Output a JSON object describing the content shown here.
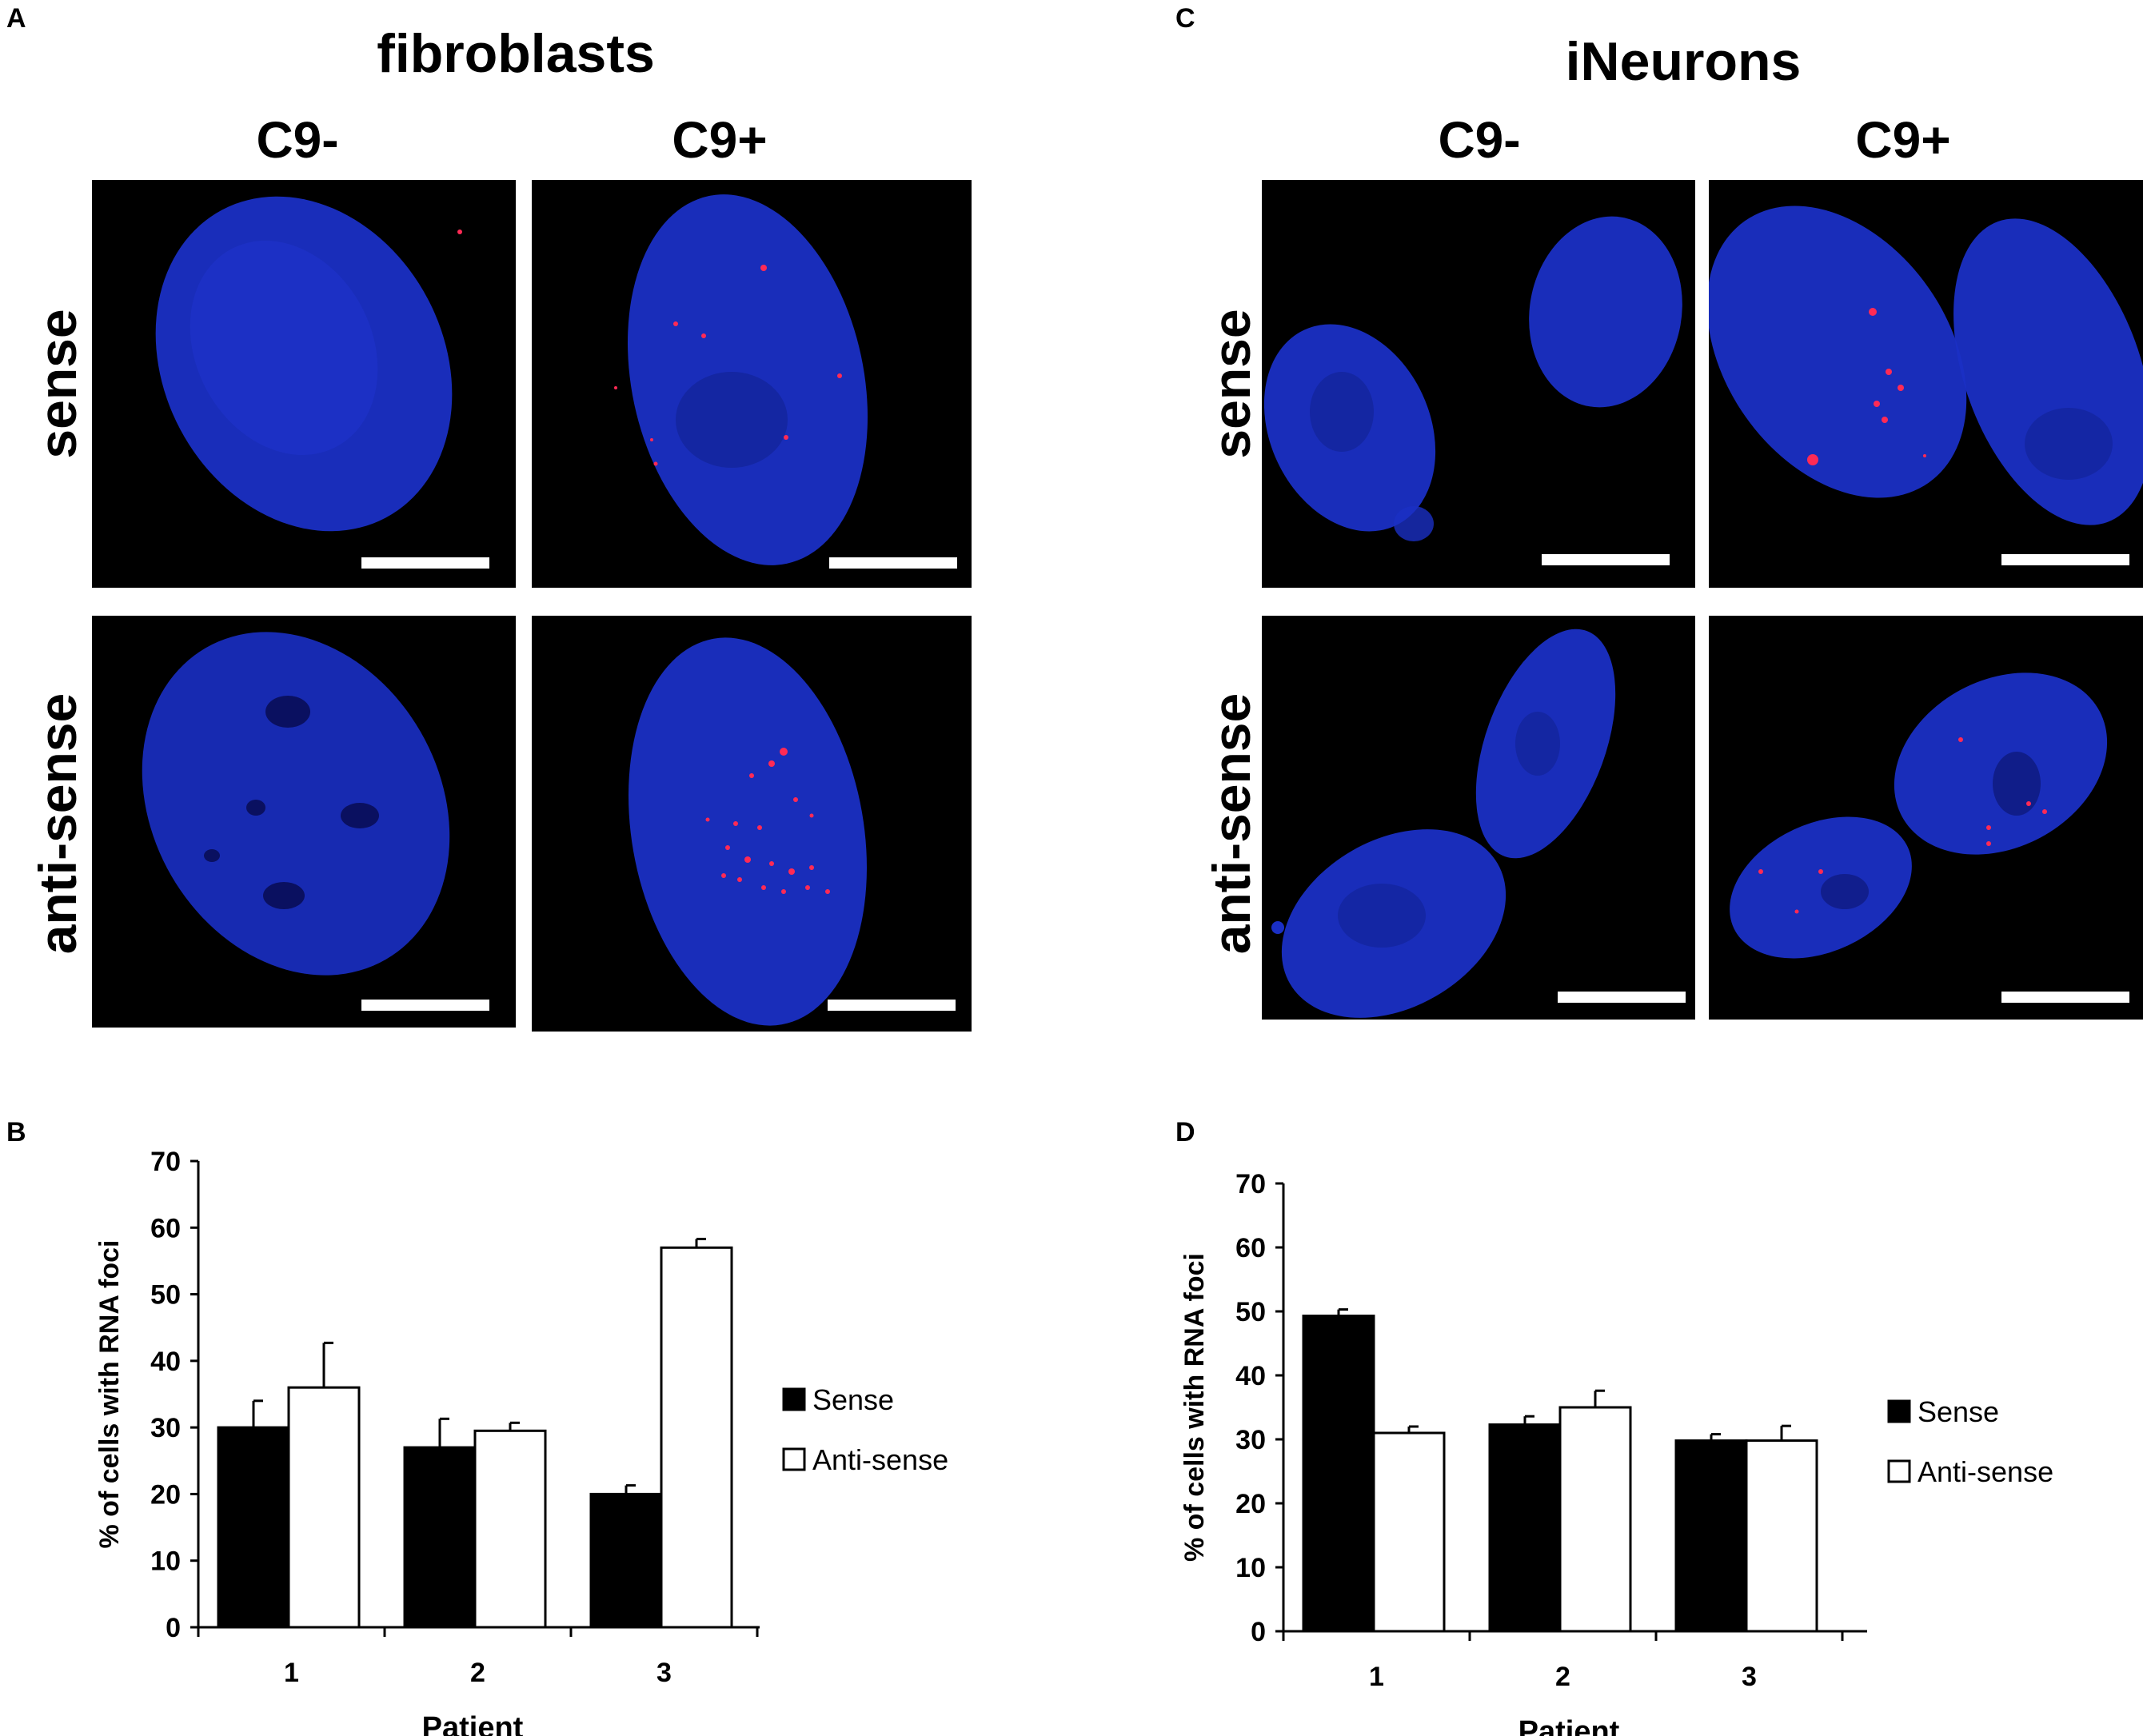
{
  "figure": {
    "panels": {
      "A": "A",
      "B": "B",
      "C": "C",
      "D": "D"
    },
    "group_a": {
      "title": "fibroblasts",
      "col_neg": "C9-",
      "col_pos": "C9+",
      "row_sense": "sense",
      "row_antisense": "anti-sense"
    },
    "group_c": {
      "title": "iNeurons",
      "col_neg": "C9-",
      "col_pos": "C9+",
      "row_sense": "sense",
      "row_antisense": "anti-sense"
    },
    "colors": {
      "nucleus": "#1a2fc4",
      "foci": "#ff2a55",
      "background": "#000000",
      "scalebar": "#ffffff"
    }
  },
  "chart_data": [
    {
      "panel": "B",
      "type": "bar",
      "categories": [
        "1",
        "2",
        "3"
      ],
      "series": [
        {
          "name": "Sense",
          "values": [
            30,
            27,
            20
          ],
          "errors": [
            4,
            4.3,
            1.3
          ],
          "color": "#000000"
        },
        {
          "name": "Anti-sense",
          "values": [
            36,
            29.5,
            57
          ],
          "errors": [
            6.7,
            1.2,
            1.3
          ],
          "color": "#ffffff"
        }
      ],
      "xlabel": "Patient",
      "ylabel": "% of cells with RNA foci",
      "yticks": [
        "0",
        "10",
        "20",
        "30",
        "40",
        "50",
        "60",
        "70"
      ],
      "ylim": [
        0,
        70
      ],
      "legend_position": "right"
    },
    {
      "panel": "D",
      "type": "bar",
      "categories": [
        "1",
        "2",
        "3"
      ],
      "series": [
        {
          "name": "Sense",
          "values": [
            49.3,
            32.3,
            29.8
          ],
          "errors": [
            1.0,
            1.3,
            1.0
          ],
          "color": "#000000"
        },
        {
          "name": "Anti-sense",
          "values": [
            31,
            35,
            29.8
          ],
          "errors": [
            1.0,
            2.6,
            2.3
          ],
          "color": "#ffffff"
        }
      ],
      "xlabel": "Patient",
      "ylabel": "% of cells with RNA foci",
      "yticks": [
        "0",
        "10",
        "20",
        "30",
        "40",
        "50",
        "60",
        "70"
      ],
      "ylim": [
        0,
        70
      ],
      "legend_position": "right"
    }
  ]
}
